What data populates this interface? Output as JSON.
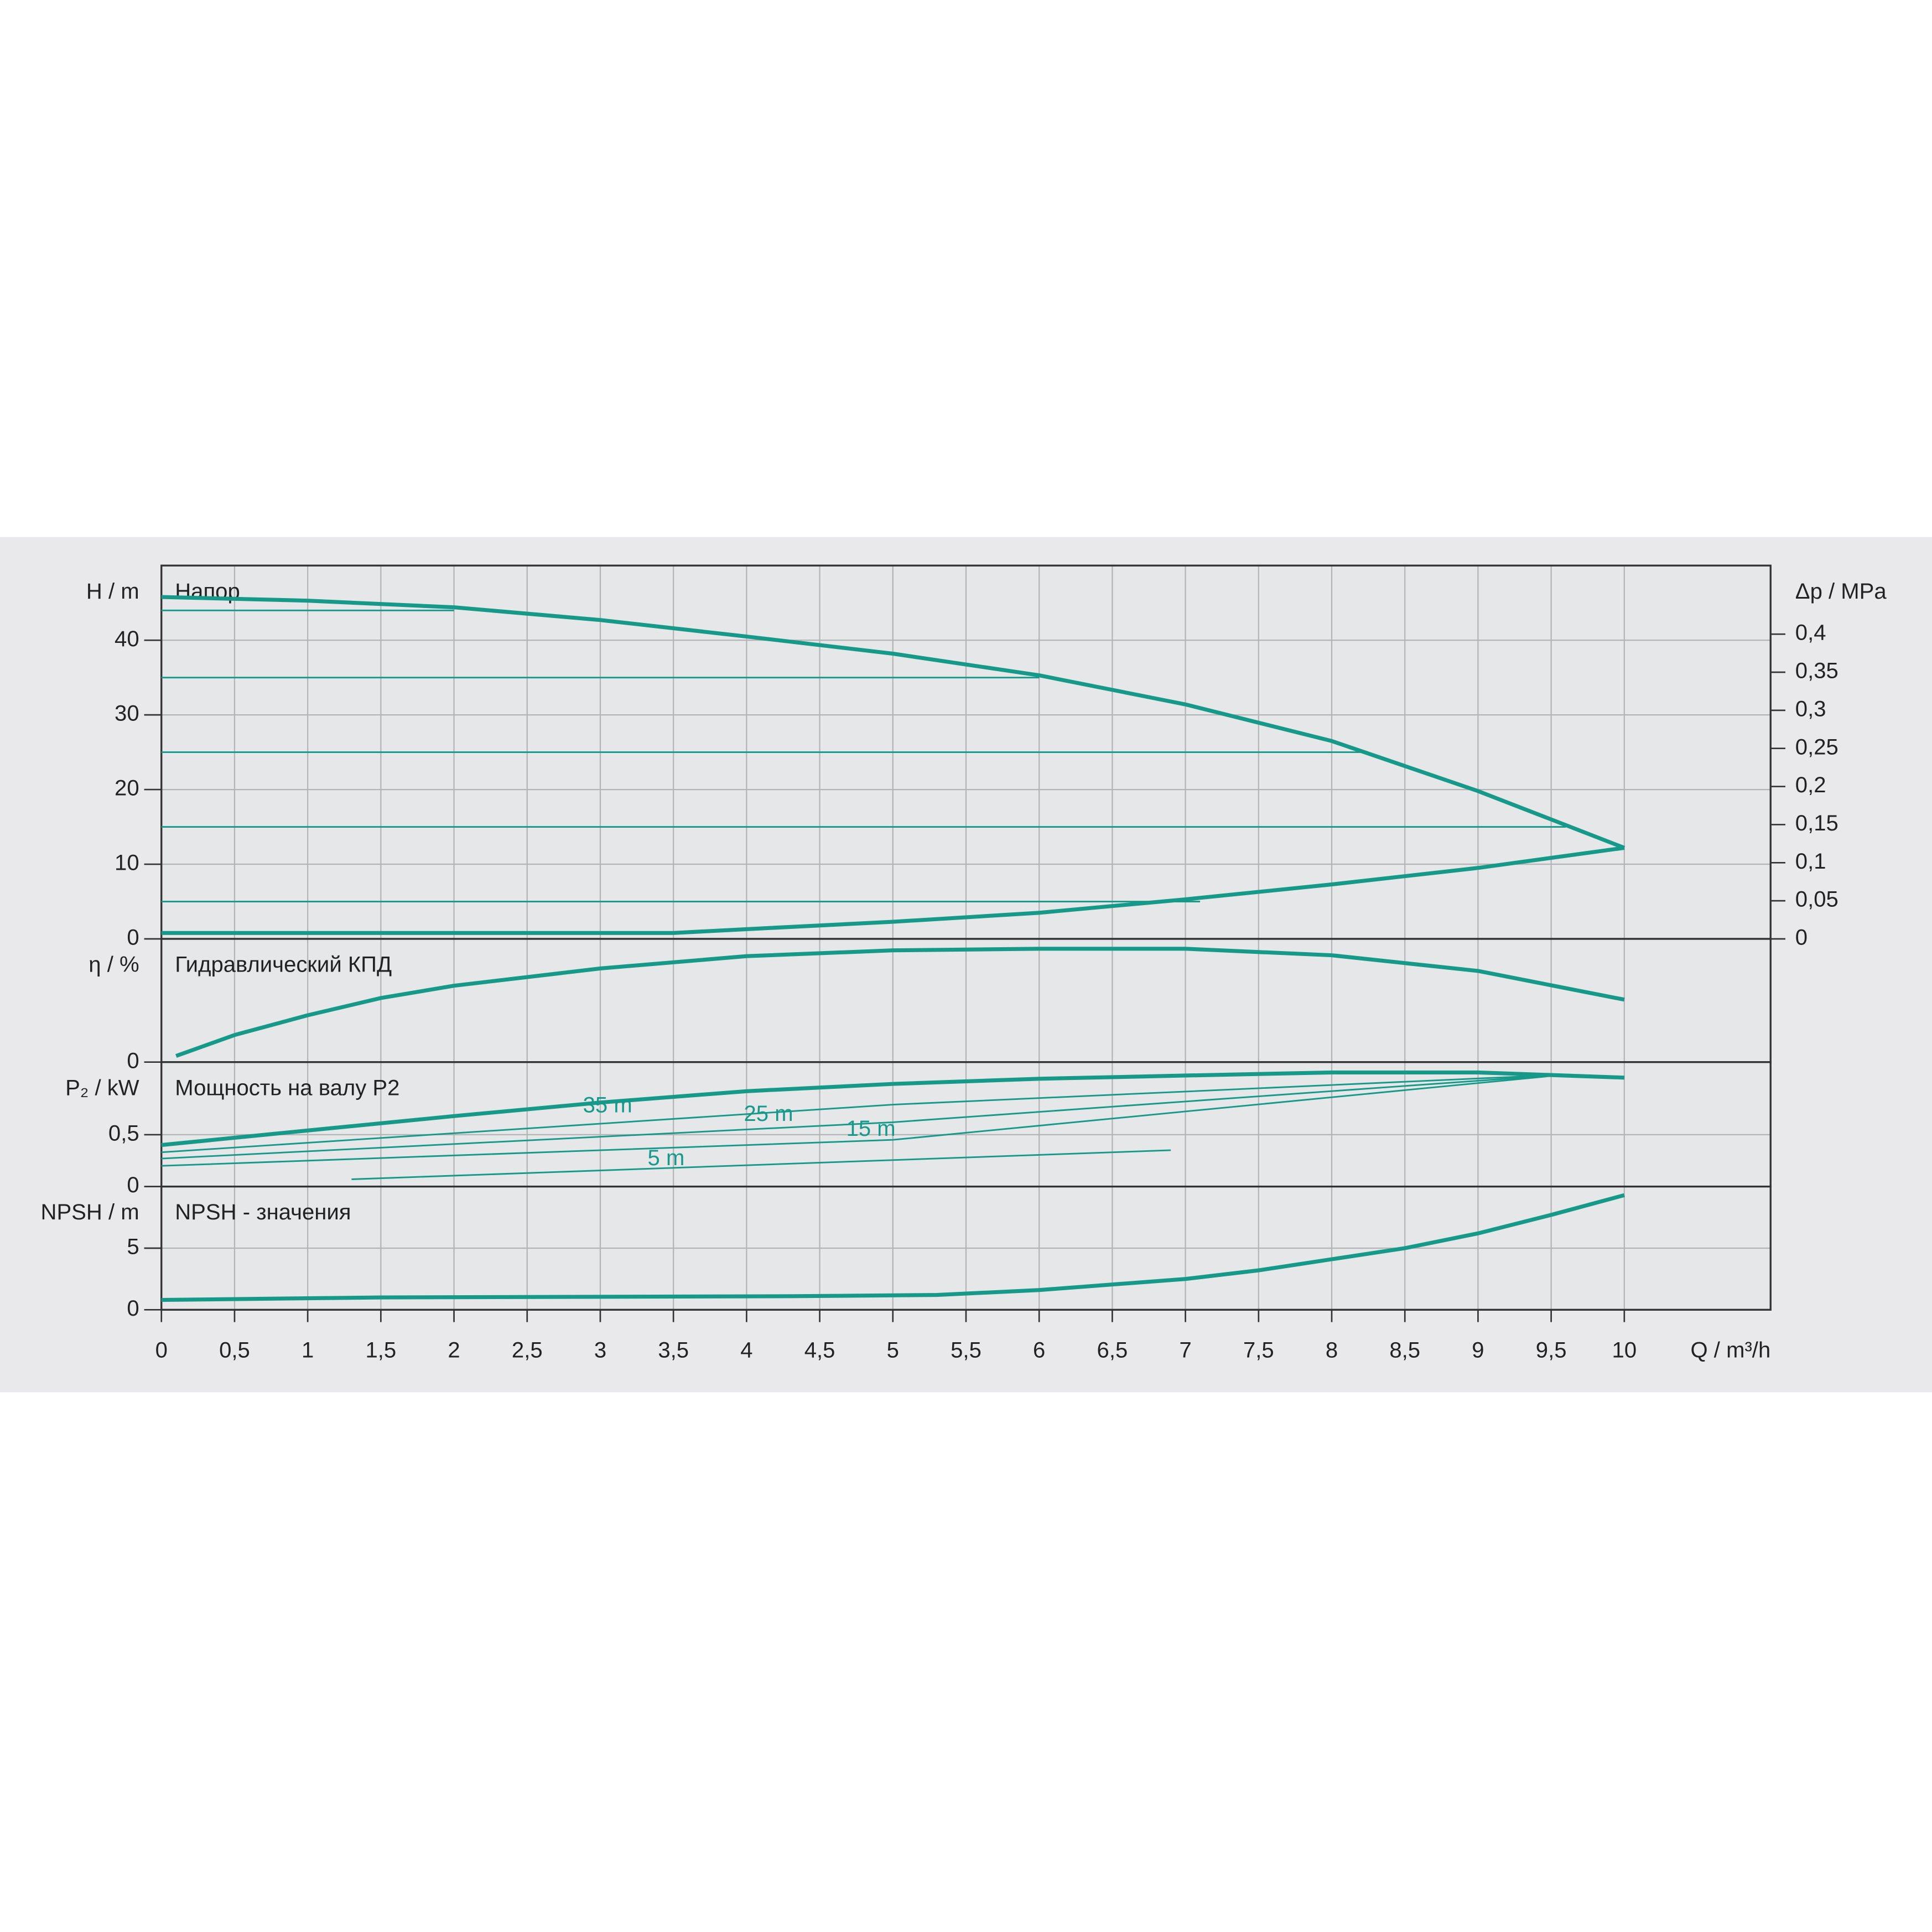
{
  "chart_data": [
    {
      "type": "line",
      "title": "Напор",
      "y_label": "H / m",
      "ylim": [
        0,
        50
      ],
      "yticks": [
        0,
        10,
        20,
        30,
        40
      ],
      "y2_label": "Δp / MPa",
      "y2lim": [
        0,
        0.49
      ],
      "y2ticks": [
        0,
        {
          "value": 0.05,
          "label": "0,05"
        },
        {
          "value": 0.1,
          "label": "0,1"
        },
        {
          "value": 0.15,
          "label": "0,15"
        },
        {
          "value": 0.2,
          "label": "0,2"
        },
        {
          "value": 0.25,
          "label": "0,25"
        },
        {
          "value": 0.3,
          "label": "0,3"
        },
        {
          "value": 0.35,
          "label": "0,35"
        },
        {
          "value": 0.4,
          "label": "0,4"
        }
      ],
      "color": "#17998a",
      "grid": true,
      "series": [
        {
          "weight": "thick",
          "x": [
            0,
            1,
            2,
            3,
            4,
            5,
            6,
            7,
            8,
            9,
            10
          ],
          "values": [
            45.8,
            45.3,
            44.4,
            42.7,
            40.5,
            38.2,
            35.3,
            31.4,
            26.5,
            19.8,
            12.2
          ]
        },
        {
          "weight": "thick",
          "x": [
            0,
            3.5,
            4,
            5,
            6,
            7,
            8,
            9,
            10
          ],
          "values": [
            0.8,
            0.8,
            1.3,
            2.3,
            3.5,
            5.3,
            7.3,
            9.5,
            12.2
          ]
        },
        {
          "weight": "thin",
          "x": [
            0,
            2
          ],
          "values": [
            44,
            44
          ]
        },
        {
          "weight": "thin",
          "x": [
            0,
            6
          ],
          "values": [
            35,
            35
          ]
        },
        {
          "weight": "thin",
          "x": [
            0,
            8.2
          ],
          "values": [
            25,
            25
          ]
        },
        {
          "weight": "thin",
          "x": [
            0,
            9.6
          ],
          "values": [
            15,
            15
          ]
        },
        {
          "weight": "thin",
          "x": [
            0,
            7.1
          ],
          "values": [
            5,
            5
          ]
        }
      ]
    },
    {
      "type": "line",
      "title": "Гидравлический КПД",
      "y_label": "η / %",
      "ylim": [
        0,
        75
      ],
      "yticks": [
        0
      ],
      "color": "#17998a",
      "grid": true,
      "series": [
        {
          "weight": "thick",
          "x": [
            0.1,
            0.5,
            1,
            1.5,
            2,
            3,
            4,
            5,
            6,
            7,
            8,
            9,
            10
          ],
          "values": [
            3.75,
            16.5,
            28.5,
            39,
            46.5,
            57,
            64.5,
            68,
            69,
            69,
            65,
            55.5,
            38
          ]
        }
      ]
    },
    {
      "type": "line",
      "title": "Мощность на валу P2",
      "y_label": "P₂ / kW",
      "ylim": [
        0,
        1.2
      ],
      "yticks": [
        0,
        {
          "value": 0.5,
          "label": "0,5"
        }
      ],
      "color": "#17998a",
      "grid": true,
      "series": [
        {
          "weight": "thick",
          "x": [
            0,
            1,
            2,
            3,
            4,
            5,
            6,
            7,
            8,
            9,
            10
          ],
          "values": [
            0.4,
            0.54,
            0.68,
            0.81,
            0.92,
            0.99,
            1.04,
            1.07,
            1.1,
            1.1,
            1.05
          ]
        },
        {
          "name": "35 m",
          "weight": "thin",
          "x": [
            0,
            5,
            9.6
          ],
          "values": [
            0.33,
            0.79,
            1.08
          ]
        },
        {
          "name": "25 m",
          "weight": "thin",
          "x": [
            0,
            5,
            9.6
          ],
          "values": [
            0.27,
            0.62,
            1.08
          ]
        },
        {
          "name": "15 m",
          "weight": "thin",
          "x": [
            0,
            5,
            9.6
          ],
          "values": [
            0.2,
            0.45,
            1.08
          ]
        },
        {
          "name": "5 m",
          "weight": "thin",
          "x": [
            1.3,
            6.9
          ],
          "values": [
            0.07,
            0.35
          ]
        }
      ]
    },
    {
      "type": "line",
      "title": "NPSH - значения",
      "y_label": "NPSH / m",
      "ylim": [
        0,
        10
      ],
      "yticks": [
        0,
        5
      ],
      "color": "#17998a",
      "grid": true,
      "x_label": "Q / m³/h",
      "xlim": [
        0,
        11
      ],
      "xticks": [
        0,
        {
          "value": 0.5,
          "label": "0,5"
        },
        1,
        {
          "value": 1.5,
          "label": "1,5"
        },
        2,
        {
          "value": 2.5,
          "label": "2,5"
        },
        3,
        {
          "value": 3.5,
          "label": "3,5"
        },
        4,
        {
          "value": 4.5,
          "label": "4,5"
        },
        5,
        {
          "value": 5.5,
          "label": "5,5"
        },
        6,
        {
          "value": 6.5,
          "label": "6,5"
        },
        7,
        {
          "value": 7.5,
          "label": "7,5"
        },
        8,
        {
          "value": 8.5,
          "label": "8,5"
        },
        9,
        {
          "value": 9.5,
          "label": "9,5"
        },
        10
      ],
      "series": [
        {
          "weight": "thick",
          "x": [
            0,
            1.5,
            4.3,
            5.3,
            6,
            7,
            7.5,
            8,
            8.5,
            9,
            9.5,
            10
          ],
          "values": [
            0.8,
            1.0,
            1.1,
            1.2,
            1.6,
            2.5,
            3.2,
            4.1,
            5.0,
            6.2,
            7.7,
            9.3
          ]
        }
      ]
    }
  ]
}
